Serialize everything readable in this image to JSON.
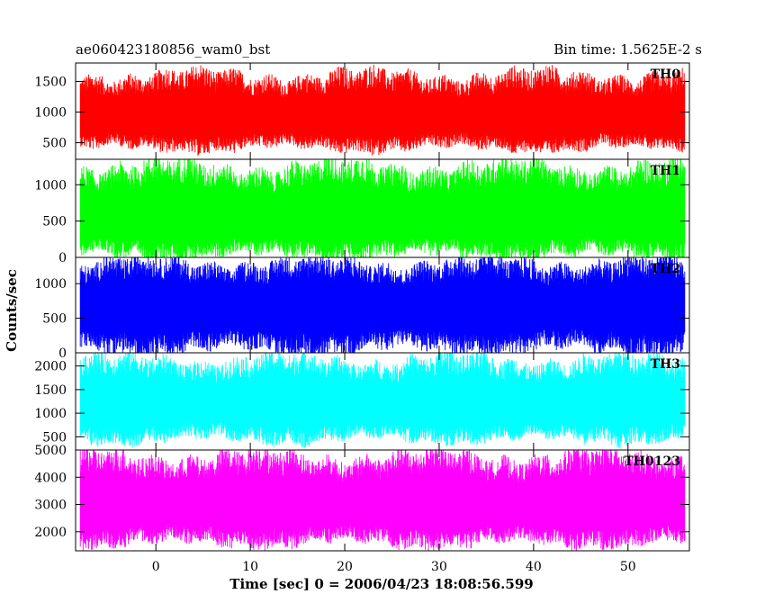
{
  "chart_data": {
    "type": "line",
    "title_left": "ae060423180856_wam0_bst",
    "title_right": "Bin time: 1.5625E-2 s",
    "xlabel": "Time [sec] 0 = 2006/04/23 18:08:56.599",
    "ylabel": "Counts/sec",
    "xlim": [
      -8.5,
      56.5
    ],
    "data_x_range": [
      -8,
      56
    ],
    "x_ticks": [
      0,
      10,
      20,
      30,
      40,
      50
    ],
    "x_tick_labels": [
      "0",
      "10",
      "20",
      "30",
      "40",
      "50"
    ],
    "grid": false,
    "panels": [
      {
        "name": "TH0",
        "color": "#ff0000",
        "ylim": [
          230,
          1800
        ],
        "y_ticks": [
          500,
          1000,
          1500
        ],
        "y_tick_labels": [
          "500",
          "1000",
          "1500"
        ],
        "mean": 900,
        "typical_low": 380,
        "typical_high": 1650
      },
      {
        "name": "TH1",
        "color": "#00ff00",
        "ylim": [
          0,
          1350
        ],
        "y_ticks": [
          0,
          500,
          1000
        ],
        "y_tick_labels": [
          "0",
          "500",
          "1000"
        ],
        "mean": 520,
        "typical_low": 0,
        "typical_high": 1300
      },
      {
        "name": "TH2",
        "color": "#0000ff",
        "ylim": [
          0,
          1380
        ],
        "y_ticks": [
          0,
          500,
          1000
        ],
        "y_tick_labels": [
          "0",
          "500",
          "1000"
        ],
        "mean": 650,
        "typical_low": 0,
        "typical_high": 1350
      },
      {
        "name": "TH3",
        "color": "#00ffff",
        "ylim": [
          220,
          2280
        ],
        "y_ticks": [
          500,
          1000,
          1500,
          2000
        ],
        "y_tick_labels": [
          "500",
          "1000",
          "1500",
          "2000"
        ],
        "mean": 1150,
        "typical_low": 400,
        "typical_high": 2200
      },
      {
        "name": "TH0123",
        "color": "#ff00ff",
        "ylim": [
          1300,
          5000
        ],
        "y_ticks": [
          2000,
          3000,
          4000,
          5000
        ],
        "y_tick_labels": [
          "2000",
          "3000",
          "4000",
          "5000"
        ],
        "mean": 2900,
        "typical_low": 1500,
        "typical_high": 4900
      }
    ]
  }
}
